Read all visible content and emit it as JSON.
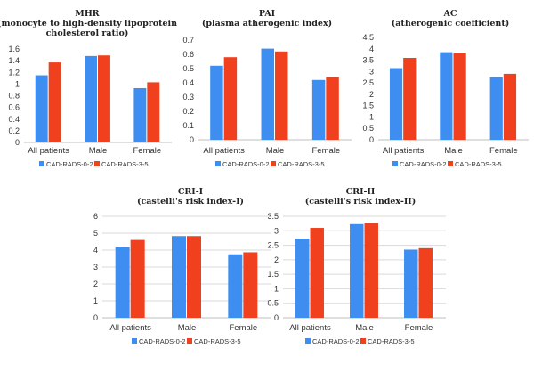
{
  "colors": {
    "series1": "#3d8ef0",
    "series2": "#f0401e"
  },
  "chart_data": [
    {
      "type": "bar",
      "title_lines": [
        "MHR",
        "(monocyte to high-density lipoprotein",
        "cholesterol ratio)"
      ],
      "categories": [
        "All patients",
        "Male",
        "Female"
      ],
      "ylim": [
        0,
        1.6
      ],
      "ytick_step": 0.2,
      "ytick_labels": [
        "0",
        "0.2",
        "0.4",
        "0.6",
        "0.8",
        "1",
        "1.2",
        "1.4",
        "1.6"
      ],
      "grid": false,
      "legend": "bottom",
      "series": [
        {
          "name": "CAD-RADS-0-2",
          "values": [
            1.15,
            1.48,
            0.93
          ]
        },
        {
          "name": "CAD-RADS-3-5",
          "values": [
            1.37,
            1.49,
            1.03
          ]
        }
      ]
    },
    {
      "type": "bar",
      "title_lines": [
        "PAI",
        "(plasma atherogenic index)"
      ],
      "categories": [
        "All patients",
        "Male",
        "Female"
      ],
      "ylim": [
        0,
        0.7
      ],
      "ytick_step": 0.1,
      "ytick_labels": [
        "0",
        "0.1",
        "0.2",
        "0.3",
        "0.4",
        "0.5",
        "0.6",
        "0.7"
      ],
      "grid": false,
      "legend": "bottom",
      "series": [
        {
          "name": "CAD-RADS-0-2",
          "values": [
            0.52,
            0.64,
            0.42
          ]
        },
        {
          "name": "CAD-RADS-3-5",
          "values": [
            0.58,
            0.62,
            0.44
          ]
        }
      ]
    },
    {
      "type": "bar",
      "title_lines": [
        "AC",
        "(atherogenic coefficient)"
      ],
      "categories": [
        "All patients",
        "Male",
        "Female"
      ],
      "ylim": [
        0,
        4.5
      ],
      "ytick_step": 0.5,
      "ytick_labels": [
        "0",
        "0.5",
        "1",
        "1.5",
        "2",
        "2.5",
        "3",
        "3.5",
        "4",
        "4.5"
      ],
      "grid": false,
      "legend": "bottom",
      "series": [
        {
          "name": "CAD-RADS-0-2",
          "values": [
            3.15,
            3.85,
            2.75
          ]
        },
        {
          "name": "CAD-RADS-3-5",
          "values": [
            3.6,
            3.83,
            2.9
          ]
        }
      ]
    },
    {
      "type": "bar",
      "title_lines": [
        "CRI-I",
        "(castelli's risk index-I)"
      ],
      "categories": [
        "All patients",
        "Male",
        "Female"
      ],
      "ylim": [
        0,
        6
      ],
      "ytick_step": 1,
      "ytick_labels": [
        "0",
        "1",
        "2",
        "3",
        "4",
        "5",
        "6"
      ],
      "grid": true,
      "legend": "bottom",
      "series": [
        {
          "name": "CAD-RADS-0-2",
          "values": [
            4.17,
            4.83,
            3.75
          ]
        },
        {
          "name": "CAD-RADS-3-5",
          "values": [
            4.6,
            4.83,
            3.87
          ]
        }
      ]
    },
    {
      "type": "bar",
      "title_lines": [
        "CRI-II",
        "(castelli's risk index-II)"
      ],
      "categories": [
        "All patients",
        "Male",
        "Female"
      ],
      "ylim": [
        0,
        3.5
      ],
      "ytick_step": 0.5,
      "ytick_labels": [
        "0",
        "0.5",
        "1",
        "1.5",
        "2",
        "2.5",
        "3",
        "3.5"
      ],
      "grid": true,
      "legend": "bottom",
      "series": [
        {
          "name": "CAD-RADS-0-2",
          "values": [
            2.73,
            3.23,
            2.35
          ]
        },
        {
          "name": "CAD-RADS-3-5",
          "values": [
            3.1,
            3.27,
            2.4
          ]
        }
      ]
    }
  ]
}
